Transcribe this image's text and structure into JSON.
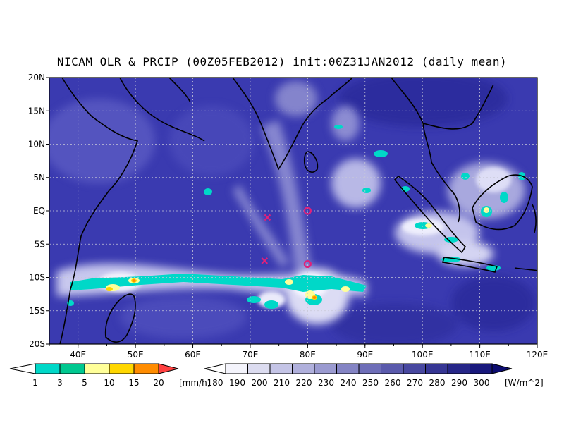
{
  "title": "NICAM OLR & PRCIP (00Z05FEB2012) init:00Z31JAN2012 (daily_mean)",
  "map": {
    "lon_range": [
      35,
      120
    ],
    "lat_range": [
      -20,
      20
    ],
    "lat_labels": [
      "20N",
      "15N",
      "10N",
      "5N",
      "EQ",
      "5S",
      "10S",
      "15S",
      "20S"
    ],
    "lon_labels": [
      "40E",
      "50E",
      "60E",
      "70E",
      "80E",
      "90E",
      "100E",
      "110E",
      "120E"
    ],
    "markers": [
      {
        "type": "x",
        "lon": 73,
        "lat": -1,
        "color": "#e0207a"
      },
      {
        "type": "o",
        "lon": 80,
        "lat": 0,
        "color": "#e0207a"
      },
      {
        "type": "x",
        "lon": 72.5,
        "lat": -7.5,
        "color": "#e0207a"
      },
      {
        "type": "o",
        "lon": 80,
        "lat": -8,
        "color": "#e0207a"
      }
    ]
  },
  "precip_legend": {
    "unit": "[mm/h]",
    "labels": [
      "1",
      "3",
      "5",
      "10",
      "15",
      "20"
    ],
    "colors": [
      "#00d8c8",
      "#00c890",
      "#ffff99",
      "#ffd700",
      "#ff8c00",
      "#ff4040"
    ]
  },
  "olr_legend": {
    "unit": "[W/m^2]",
    "labels": [
      "180",
      "190",
      "200",
      "210",
      "220",
      "230",
      "240",
      "250",
      "260",
      "270",
      "280",
      "290",
      "300"
    ],
    "colors": [
      "#f4f4fc",
      "#dcdcf0",
      "#c4c4e6",
      "#b0b0dc",
      "#9a9ad0",
      "#8484c4",
      "#6e6eb8",
      "#5a5aac",
      "#4848a0",
      "#363694",
      "#262688",
      "#18187c",
      "#0c0c70"
    ]
  }
}
